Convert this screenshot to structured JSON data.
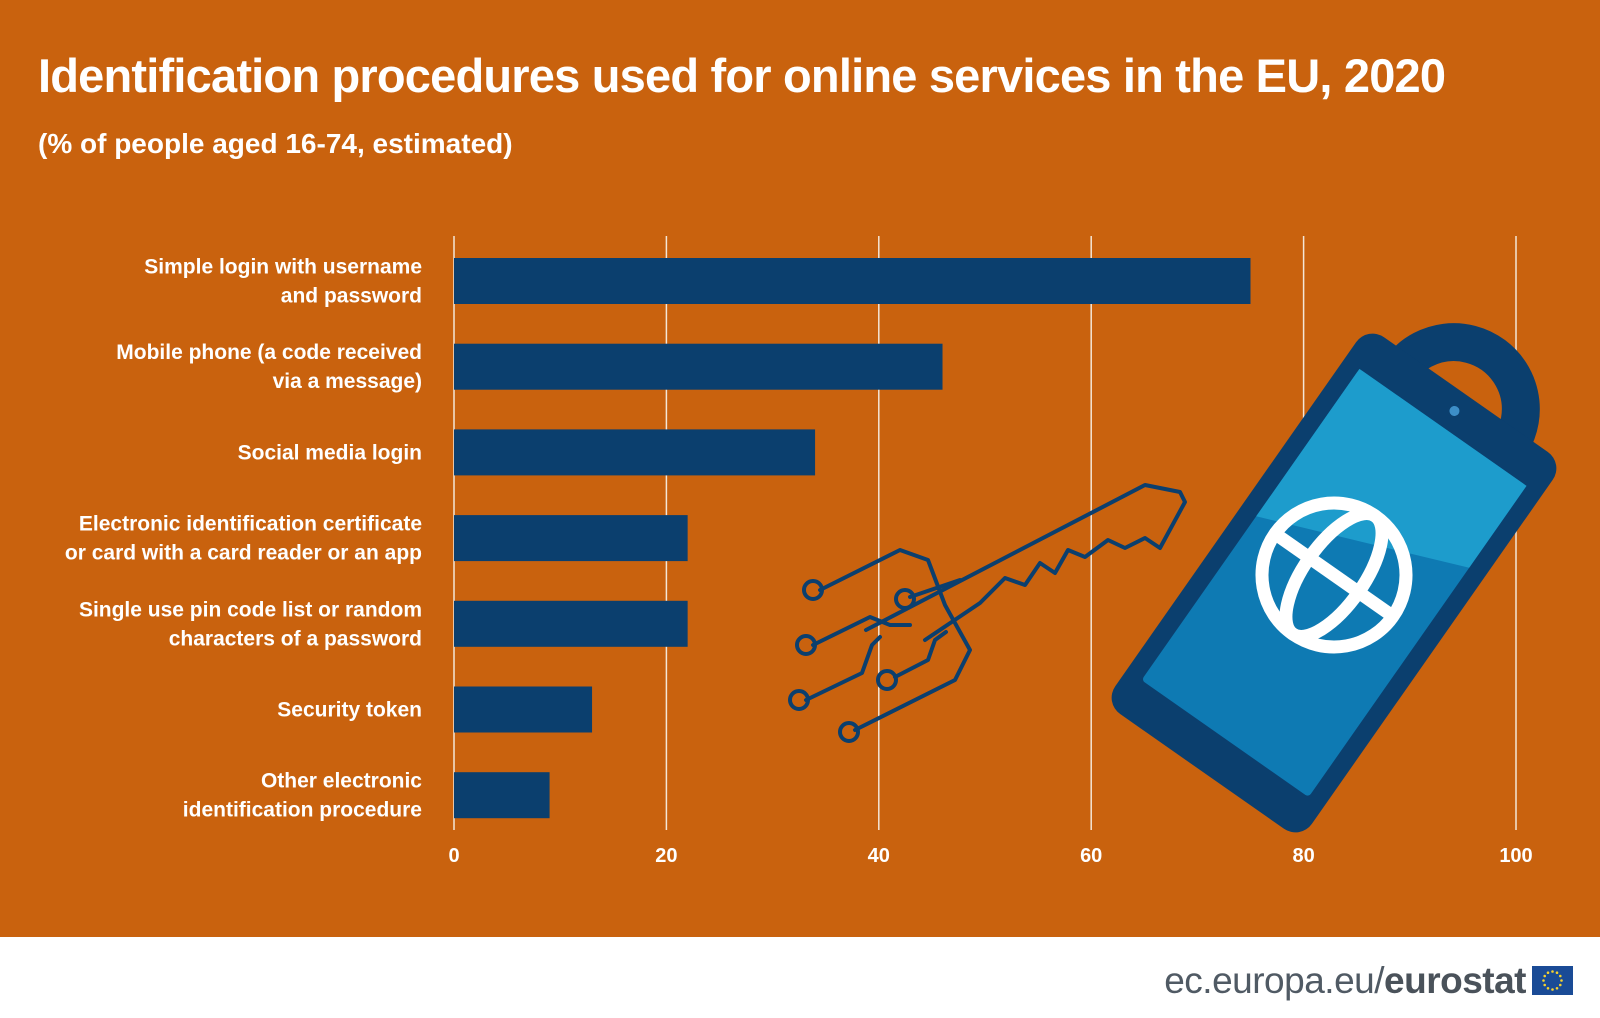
{
  "title": "Identification procedures used for online services in the EU, 2020",
  "subtitle": "(% of people aged 16-74, estimated)",
  "colors": {
    "background": "#c9620e",
    "bar": "#0b3f6e",
    "gridline": "#f4e6d6",
    "text": "#ffffff"
  },
  "chart_data": {
    "type": "bar",
    "orientation": "horizontal",
    "title": "Identification procedures used for online services in the EU, 2020",
    "subtitle": "(% of people aged 16-74, estimated)",
    "categories": [
      [
        "Simple login with username",
        "and password"
      ],
      [
        "Mobile phone (a code received",
        "via a message)"
      ],
      [
        "Social media login"
      ],
      [
        "Electronic identification certificate",
        "or card with a card reader or an app"
      ],
      [
        "Single use pin code list or random",
        "characters of a password"
      ],
      [
        "Security token"
      ],
      [
        "Other electronic",
        "identification procedure"
      ]
    ],
    "values": [
      75,
      46,
      34,
      22,
      22,
      13,
      9
    ],
    "xlim": [
      0,
      100
    ],
    "xticks": [
      "0",
      "20",
      "40",
      "60",
      "80",
      "100"
    ],
    "grid": true,
    "legend": "none"
  },
  "illustration": {
    "icons": [
      "circuit-key-icon",
      "padlock-phone-icon",
      "globe-icon"
    ]
  },
  "footer": {
    "source_prefix": "ec.europa.eu/",
    "source_brand": "eurostat",
    "flag_icon": "eu-flag-icon"
  }
}
